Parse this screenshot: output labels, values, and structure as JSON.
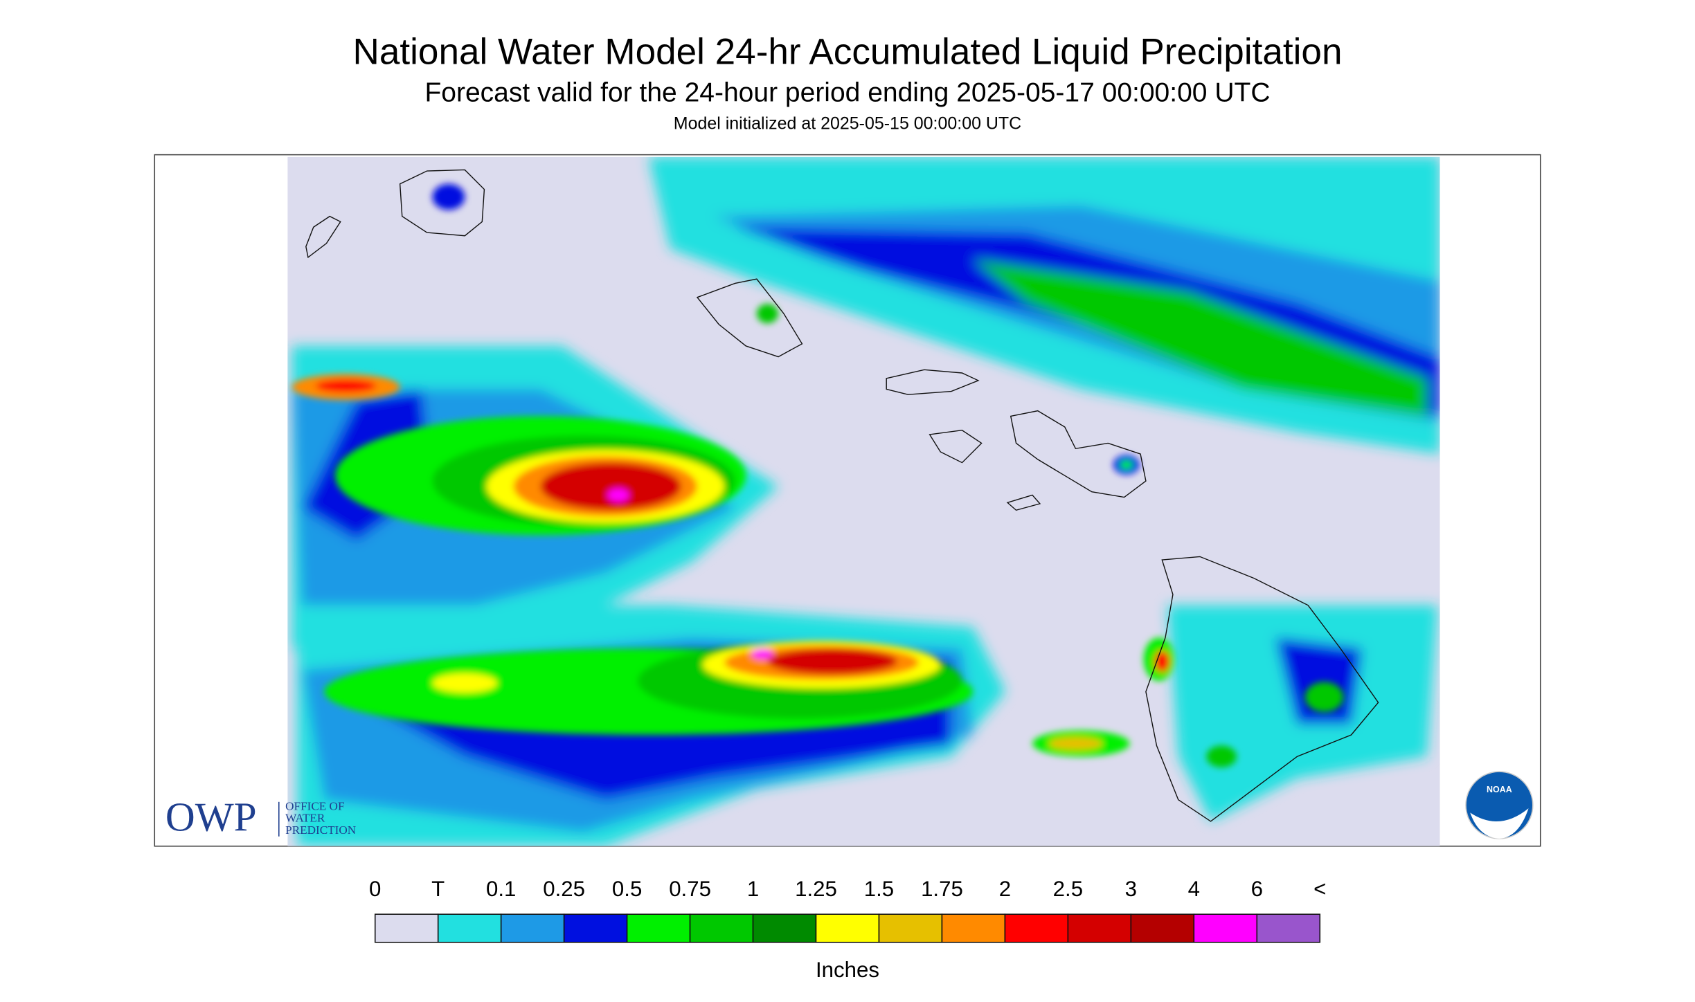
{
  "header": {
    "title": "National Water Model 24-hr Accumulated Liquid Precipitation",
    "subtitle": "Forecast valid for the 24-hour period ending 2025-05-17 00:00:00 UTC",
    "initialized": "Model initialized at 2025-05-15 00:00:00 UTC"
  },
  "legend": {
    "labels": [
      "0",
      "T",
      "0.1",
      "0.25",
      "0.5",
      "0.75",
      "1",
      "1.25",
      "1.5",
      "1.75",
      "2",
      "2.5",
      "3",
      "4",
      "6",
      "<"
    ],
    "colors": [
      "#dcdcee",
      "#22e0e0",
      "#1e9ae6",
      "#0010e0",
      "#00f000",
      "#00c800",
      "#008a00",
      "#ffff00",
      "#e6c000",
      "#ff8a00",
      "#ff0000",
      "#d40000",
      "#b40000",
      "#ff00ff",
      "#9955cc"
    ],
    "unit": "Inches"
  },
  "logos": {
    "owp": "OWP",
    "owp_lines": [
      "OFFICE OF",
      "WATER",
      "PREDICTION"
    ],
    "noaa": "NOAA"
  }
}
